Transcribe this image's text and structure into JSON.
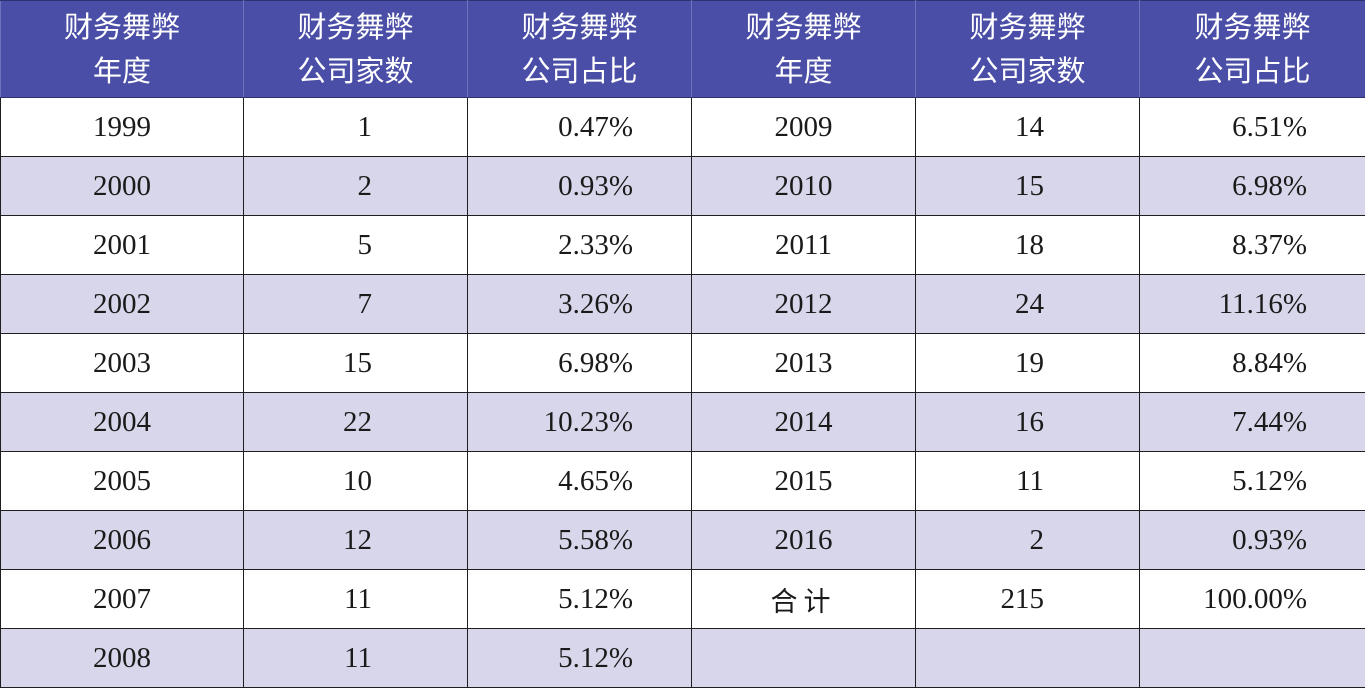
{
  "headers": [
    {
      "line1": "财务舞弊",
      "line2": "年度"
    },
    {
      "line1": "财务舞弊",
      "line2": "公司家数"
    },
    {
      "line1": "财务舞弊",
      "line2": "公司占比"
    },
    {
      "line1": "财务舞弊",
      "line2": "年度"
    },
    {
      "line1": "财务舞弊",
      "line2": "公司家数"
    },
    {
      "line1": "财务舞弊",
      "line2": "公司占比"
    }
  ],
  "rows": [
    {
      "y1": "1999",
      "n1": "1",
      "p1": "0.47%",
      "y2": "2009",
      "n2": "14",
      "p2": "6.51%"
    },
    {
      "y1": "2000",
      "n1": "2",
      "p1": "0.93%",
      "y2": "2010",
      "n2": "15",
      "p2": "6.98%"
    },
    {
      "y1": "2001",
      "n1": "5",
      "p1": "2.33%",
      "y2": "2011",
      "n2": "18",
      "p2": "8.37%"
    },
    {
      "y1": "2002",
      "n1": "7",
      "p1": "3.26%",
      "y2": "2012",
      "n2": "24",
      "p2": "11.16%"
    },
    {
      "y1": "2003",
      "n1": "15",
      "p1": "6.98%",
      "y2": "2013",
      "n2": "19",
      "p2": "8.84%"
    },
    {
      "y1": "2004",
      "n1": "22",
      "p1": "10.23%",
      "y2": "2014",
      "n2": "16",
      "p2": "7.44%"
    },
    {
      "y1": "2005",
      "n1": "10",
      "p1": "4.65%",
      "y2": "2015",
      "n2": "11",
      "p2": "5.12%"
    },
    {
      "y1": "2006",
      "n1": "12",
      "p1": "5.58%",
      "y2": "2016",
      "n2": "2",
      "p2": "0.93%"
    },
    {
      "y1": "2007",
      "n1": "11",
      "p1": "5.12%",
      "y2": "合计",
      "n2": "215",
      "p2": "100.00%"
    },
    {
      "y1": "2008",
      "n1": "11",
      "p1": "5.12%",
      "y2": "",
      "n2": "",
      "p2": ""
    }
  ],
  "colors": {
    "header_bg": "#4a4ea6",
    "header_text": "#ffffff",
    "row_alt_bg": "#d8d6ea",
    "row_bg": "#ffffff"
  }
}
